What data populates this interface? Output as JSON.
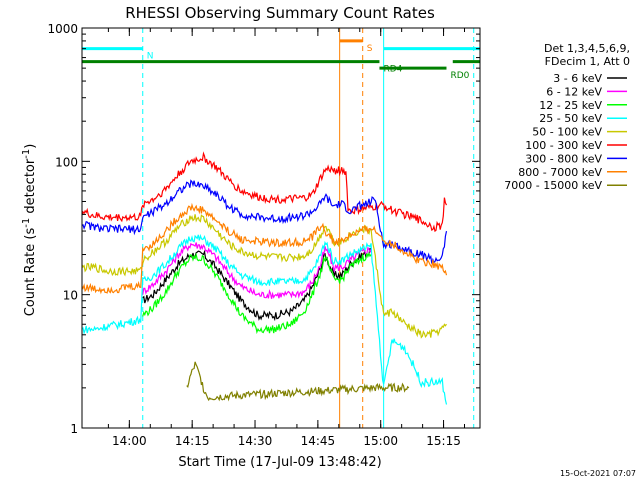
{
  "chart_data": {
    "type": "line",
    "title": "RHESSI Observing Summary Count Rates",
    "xlabel": "Start Time (17-Jul-09 13:48:42)",
    "ylabel_parts": [
      "Count Rate (s",
      "-1",
      " detector",
      "-1",
      ")"
    ],
    "x_unit": "minutes after 13:48:42 (17-Jul-09)",
    "xlim": [
      0,
      95
    ],
    "ylim": [
      1,
      1000
    ],
    "y_scale": "log",
    "x_ticks": [
      {
        "t": 11.3,
        "label": "14:00"
      },
      {
        "t": 26.3,
        "label": "14:15"
      },
      {
        "t": 41.3,
        "label": "14:30"
      },
      {
        "t": 56.3,
        "label": "14:45"
      },
      {
        "t": 71.3,
        "label": "15:00"
      },
      {
        "t": 86.3,
        "label": "15:15"
      }
    ],
    "y_ticks": [
      {
        "v": 1,
        "label": "1"
      },
      {
        "v": 10,
        "label": "10"
      },
      {
        "v": 100,
        "label": "100"
      },
      {
        "v": 1000,
        "label": "1000"
      }
    ],
    "legend_header": [
      "Det 1,3,4,5,6,9,",
      "FDecim 1, Att 0"
    ],
    "legend_placement": "right",
    "series": [
      {
        "name": "3 - 6 keV",
        "color": "#000000",
        "points": [
          [
            14.5,
            9
          ],
          [
            17,
            10
          ],
          [
            20,
            13
          ],
          [
            23,
            17
          ],
          [
            26,
            20
          ],
          [
            29,
            20
          ],
          [
            32,
            16
          ],
          [
            35,
            12
          ],
          [
            38,
            9
          ],
          [
            42,
            7
          ],
          [
            46,
            7
          ],
          [
            50,
            7.5
          ],
          [
            53,
            9
          ],
          [
            55,
            11.5
          ],
          [
            57,
            16
          ],
          [
            58,
            20
          ],
          [
            59,
            17
          ],
          [
            60,
            14
          ],
          [
            62,
            14
          ],
          [
            64,
            17
          ],
          [
            67,
            20
          ],
          [
            69,
            21
          ]
        ]
      },
      {
        "name": "6 - 12 keV",
        "color": "#ff00ff",
        "points": [
          [
            14.5,
            10.5
          ],
          [
            17,
            12
          ],
          [
            20,
            15
          ],
          [
            23,
            20
          ],
          [
            26,
            24
          ],
          [
            29,
            23
          ],
          [
            32,
            19
          ],
          [
            35,
            14.5
          ],
          [
            38,
            11.5
          ],
          [
            42,
            10
          ],
          [
            46,
            10
          ],
          [
            50,
            10
          ],
          [
            53,
            10.5
          ],
          [
            55,
            12.5
          ],
          [
            57,
            17
          ],
          [
            58,
            22
          ],
          [
            59,
            20
          ],
          [
            60,
            16
          ],
          [
            62,
            16
          ],
          [
            64,
            18
          ],
          [
            67,
            21
          ],
          [
            69,
            22
          ]
        ]
      },
      {
        "name": "12 - 25 keV",
        "color": "#00ff00",
        "points": [
          [
            14.5,
            7
          ],
          [
            17,
            8
          ],
          [
            20,
            10.5
          ],
          [
            23,
            15
          ],
          [
            26,
            19
          ],
          [
            29,
            18.5
          ],
          [
            32,
            14
          ],
          [
            35,
            10
          ],
          [
            38,
            7
          ],
          [
            42,
            5.5
          ],
          [
            46,
            5.5
          ],
          [
            50,
            6
          ],
          [
            53,
            7.5
          ],
          [
            55,
            10
          ],
          [
            57,
            15
          ],
          [
            58,
            19
          ],
          [
            59,
            16
          ],
          [
            60,
            13
          ],
          [
            62,
            13
          ],
          [
            64,
            16
          ],
          [
            67,
            19
          ],
          [
            69,
            20
          ]
        ]
      },
      {
        "name": "25 - 50 keV",
        "color": "#00ffff",
        "points": [
          [
            0,
            5.5
          ],
          [
            3,
            5.5
          ],
          [
            6,
            5.8
          ],
          [
            9,
            6
          ],
          [
            11,
            6.2
          ],
          [
            14,
            6.5
          ],
          [
            14.5,
            12.5
          ],
          [
            17,
            14
          ],
          [
            20,
            17
          ],
          [
            23,
            22
          ],
          [
            26,
            27
          ],
          [
            29,
            26
          ],
          [
            32,
            22
          ],
          [
            35,
            17
          ],
          [
            38,
            14
          ],
          [
            42,
            12.5
          ],
          [
            46,
            12.5
          ],
          [
            50,
            12.5
          ],
          [
            53,
            13
          ],
          [
            55,
            15
          ],
          [
            57,
            20
          ],
          [
            58,
            25
          ],
          [
            59,
            22
          ],
          [
            60,
            18
          ],
          [
            62,
            18
          ],
          [
            64,
            20
          ],
          [
            67,
            22
          ],
          [
            69,
            23
          ],
          [
            72,
            2
          ],
          [
            74,
            4.5
          ],
          [
            77,
            4
          ],
          [
            79,
            3
          ],
          [
            81,
            2.2
          ],
          [
            83,
            2.2
          ],
          [
            86,
            2.2
          ],
          [
            87,
            1.5
          ]
        ]
      },
      {
        "name": "50 - 100 keV",
        "color": "#c8c800",
        "points": [
          [
            0,
            16
          ],
          [
            3,
            16
          ],
          [
            6,
            15
          ],
          [
            9,
            15
          ],
          [
            11,
            15
          ],
          [
            14,
            15
          ],
          [
            14.5,
            18
          ],
          [
            17,
            21
          ],
          [
            20,
            25
          ],
          [
            23,
            32
          ],
          [
            26,
            38
          ],
          [
            29,
            37
          ],
          [
            32,
            30
          ],
          [
            35,
            24
          ],
          [
            38,
            21
          ],
          [
            42,
            19.5
          ],
          [
            46,
            19
          ],
          [
            50,
            19
          ],
          [
            53,
            19.5
          ],
          [
            55,
            22
          ],
          [
            57,
            28
          ],
          [
            58,
            33
          ],
          [
            59,
            30
          ],
          [
            60,
            25
          ],
          [
            62,
            25
          ],
          [
            64,
            28
          ],
          [
            67,
            31
          ],
          [
            69,
            30
          ],
          [
            72,
            7
          ],
          [
            74,
            7.5
          ],
          [
            77,
            6
          ],
          [
            79,
            5.5
          ],
          [
            81,
            5
          ],
          [
            83,
            5
          ],
          [
            86,
            5.5
          ],
          [
            87,
            6
          ]
        ]
      },
      {
        "name": "100 - 300 keV",
        "color": "#ff0000",
        "points": [
          [
            0,
            42
          ],
          [
            3,
            39
          ],
          [
            6,
            38
          ],
          [
            9,
            38
          ],
          [
            11,
            38
          ],
          [
            14,
            38
          ],
          [
            14.5,
            48
          ],
          [
            17,
            52
          ],
          [
            20,
            62
          ],
          [
            23,
            80
          ],
          [
            26,
            100
          ],
          [
            29,
            107
          ],
          [
            32,
            90
          ],
          [
            35,
            72
          ],
          [
            38,
            60
          ],
          [
            42,
            54
          ],
          [
            46,
            52
          ],
          [
            50,
            52
          ],
          [
            53,
            53
          ],
          [
            55,
            56
          ],
          [
            57,
            75
          ],
          [
            58,
            85
          ],
          [
            59,
            88
          ],
          [
            60,
            85
          ],
          [
            62,
            86
          ],
          [
            63,
            83
          ],
          [
            63.5,
            45
          ],
          [
            64,
            42
          ],
          [
            67,
            44
          ],
          [
            69,
            45
          ],
          [
            72,
            47
          ],
          [
            74,
            43
          ],
          [
            77,
            40
          ],
          [
            79,
            38
          ],
          [
            81,
            36
          ],
          [
            84,
            32
          ],
          [
            86,
            33
          ],
          [
            86.5,
            50
          ],
          [
            87,
            47
          ]
        ]
      },
      {
        "name": "300 - 800 keV",
        "color": "#0000ff",
        "points": [
          [
            0,
            34
          ],
          [
            3,
            32
          ],
          [
            6,
            31
          ],
          [
            9,
            31
          ],
          [
            11,
            31
          ],
          [
            14,
            31
          ],
          [
            14.5,
            38
          ],
          [
            17,
            42
          ],
          [
            20,
            48
          ],
          [
            23,
            60
          ],
          [
            26,
            68
          ],
          [
            29,
            66
          ],
          [
            32,
            57
          ],
          [
            35,
            46
          ],
          [
            38,
            40
          ],
          [
            42,
            38
          ],
          [
            46,
            37
          ],
          [
            50,
            38
          ],
          [
            53,
            39
          ],
          [
            55,
            42
          ],
          [
            57,
            48
          ],
          [
            58,
            55
          ],
          [
            59,
            50
          ],
          [
            60,
            46
          ],
          [
            62,
            48
          ],
          [
            64,
            42
          ],
          [
            66,
            46
          ],
          [
            68,
            48
          ],
          [
            70,
            52
          ],
          [
            72,
            23
          ],
          [
            74,
            24
          ],
          [
            77,
            22
          ],
          [
            79,
            21
          ],
          [
            81,
            20
          ],
          [
            84,
            18
          ],
          [
            86,
            19
          ],
          [
            87,
            30
          ]
        ]
      },
      {
        "name": "800 - 7000 keV",
        "color": "#ff8000",
        "points": [
          [
            0,
            11.5
          ],
          [
            3,
            11
          ],
          [
            6,
            11
          ],
          [
            9,
            11
          ],
          [
            11,
            11.5
          ],
          [
            14,
            11.5
          ],
          [
            14.5,
            22
          ],
          [
            17,
            24
          ],
          [
            20,
            30
          ],
          [
            23,
            38
          ],
          [
            26,
            45
          ],
          [
            29,
            43
          ],
          [
            32,
            36
          ],
          [
            35,
            30
          ],
          [
            38,
            26
          ],
          [
            42,
            25
          ],
          [
            46,
            24.5
          ],
          [
            50,
            24.5
          ],
          [
            53,
            25
          ],
          [
            55,
            27
          ],
          [
            57,
            33
          ],
          [
            58,
            30
          ],
          [
            59,
            28
          ],
          [
            60,
            25
          ],
          [
            62,
            25
          ],
          [
            64,
            28
          ],
          [
            67,
            30
          ],
          [
            69,
            32
          ],
          [
            72,
            26
          ],
          [
            74,
            24
          ],
          [
            77,
            21
          ],
          [
            79,
            19
          ],
          [
            81,
            18
          ],
          [
            84,
            17
          ],
          [
            86,
            16
          ],
          [
            87,
            14
          ]
        ]
      },
      {
        "name": "7000 - 15000 keV",
        "color": "#808000",
        "points": [
          [
            25,
            2
          ],
          [
            26,
            2.5
          ],
          [
            27,
            3
          ],
          [
            28,
            2.5
          ],
          [
            29,
            2
          ],
          [
            30,
            1.7
          ],
          [
            70,
            2
          ],
          [
            72,
            2
          ],
          [
            74,
            2
          ],
          [
            76,
            2
          ],
          [
            78,
            2
          ]
        ]
      }
    ],
    "state_bars": [
      {
        "label": "N",
        "color": "#00ffff",
        "t0": 0,
        "t1": 14.5,
        "level": 700
      },
      {
        "label": "",
        "color": "#00ffff",
        "t0": 72,
        "t1": 95,
        "level": 700
      },
      {
        "label": "S",
        "color": "#ff8000",
        "t0": 61.5,
        "t1": 67,
        "level": 800
      },
      {
        "label": "RD4",
        "color": "#008000",
        "t0": 0,
        "t1": 71,
        "level": 560
      },
      {
        "label": "RD0",
        "color": "#008000",
        "t0": 71,
        "t1": 87,
        "level": 500
      },
      {
        "label": "",
        "color": "#008000",
        "t0": 88.5,
        "t1": 95,
        "level": 560
      }
    ],
    "markers": [
      {
        "t": 14.5,
        "color": "#00ffff",
        "style": "dashed"
      },
      {
        "t": 61.5,
        "color": "#ff8000",
        "style": "solid"
      },
      {
        "t": 67,
        "color": "#ff8000",
        "style": "dashed"
      },
      {
        "t": 72,
        "color": "#00ffff",
        "style": "solid"
      },
      {
        "t": 93.5,
        "color": "#00ffff",
        "style": "dashed"
      }
    ],
    "date_stamp": "15-Oct-2021 07:07"
  }
}
